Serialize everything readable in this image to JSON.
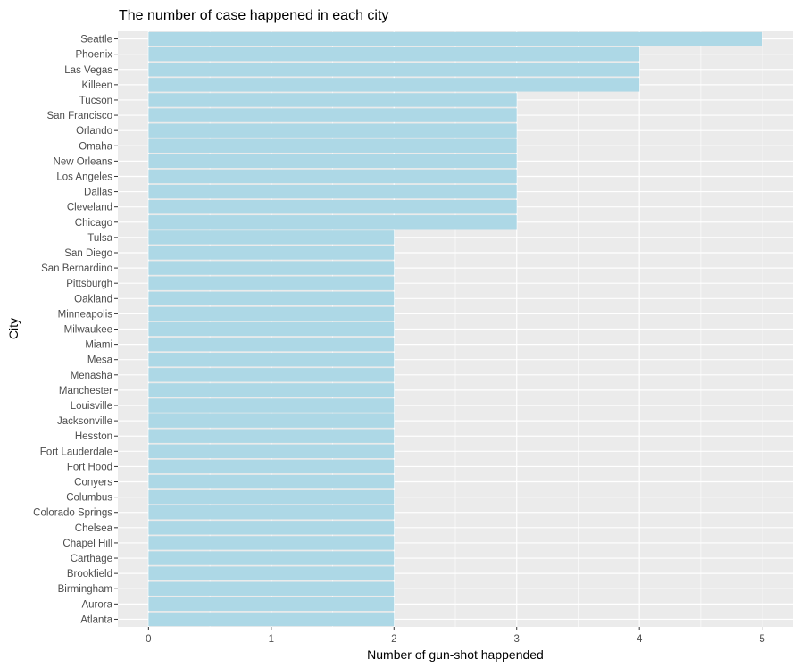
{
  "chart_data": {
    "type": "bar",
    "orientation": "horizontal",
    "title": "The number of case happened in each city",
    "xlabel": "Number of gun-shot happended",
    "ylabel": "City",
    "xlim": [
      -0.25,
      5.25
    ],
    "xticks": [
      "0",
      "1",
      "2",
      "3",
      "4",
      "5"
    ],
    "grid": true,
    "legend": "none",
    "bar_color": "#ADD8E6",
    "panel_color": "#EBEBEB",
    "grid_color": "#FFFFFF",
    "categories": [
      "Seattle",
      "Phoenix",
      "Las Vegas",
      "Killeen",
      "Tucson",
      "San Francisco",
      "Orlando",
      "Omaha",
      "New Orleans",
      "Los Angeles",
      "Dallas",
      "Cleveland",
      "Chicago",
      "Tulsa",
      "San Diego",
      "San Bernardino",
      "Pittsburgh",
      "Oakland",
      "Minneapolis",
      "Milwaukee",
      "Miami",
      "Mesa",
      "Menasha",
      "Manchester",
      "Louisville",
      "Jacksonville",
      "Hesston",
      "Fort Lauderdale",
      "Fort Hood",
      "Conyers",
      "Columbus",
      "Colorado Springs",
      "Chelsea",
      "Chapel Hill",
      "Carthage",
      "Brookfield",
      "Birmingham",
      "Aurora",
      "Atlanta"
    ],
    "values": [
      5,
      4,
      4,
      4,
      3,
      3,
      3,
      3,
      3,
      3,
      3,
      3,
      3,
      2,
      2,
      2,
      2,
      2,
      2,
      2,
      2,
      2,
      2,
      2,
      2,
      2,
      2,
      2,
      2,
      2,
      2,
      2,
      2,
      2,
      2,
      2,
      2,
      2,
      2
    ]
  }
}
